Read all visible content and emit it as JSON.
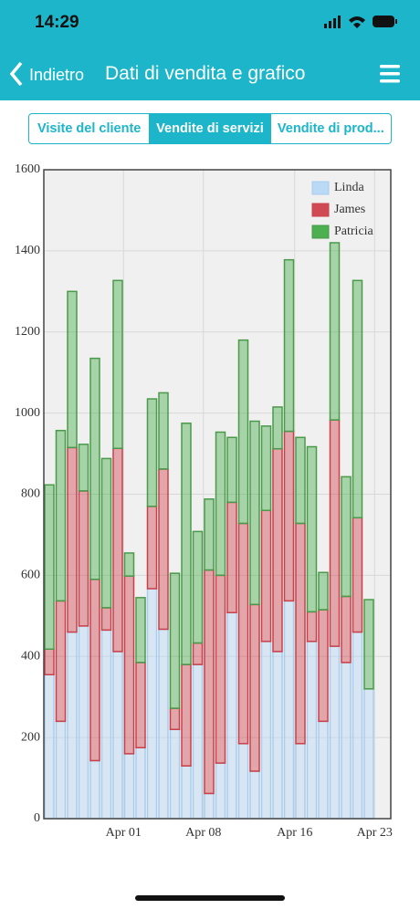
{
  "status": {
    "time": "14:29"
  },
  "nav": {
    "back": "Indietro",
    "title": "Dati di vendita e grafico"
  },
  "tabs": [
    "Visite del cliente",
    "Vendite di servizi",
    "Vendite di prod..."
  ],
  "chart_data": {
    "type": "stacked_bar",
    "x": [
      "Mar 25",
      "Mar 26",
      "Mar 27",
      "Mar 28",
      "Mar 29",
      "Mar 30",
      "Mar 31",
      "Apr 01",
      "Apr 02",
      "Apr 03",
      "Apr 04",
      "Apr 05",
      "Apr 06",
      "Apr 07",
      "Apr 08",
      "Apr 09",
      "Apr 10",
      "Apr 11",
      "Apr 12",
      "Apr 13",
      "Apr 14",
      "Apr 15",
      "Apr 16",
      "Apr 17",
      "Apr 18",
      "Apr 19",
      "Apr 20",
      "Apr 21",
      "Apr 22"
    ],
    "xticks": [
      "Apr 01",
      "Apr 08",
      "Apr 16",
      "Apr 23"
    ],
    "ylim": [
      0,
      1600
    ],
    "yticks": [
      0,
      200,
      400,
      600,
      800,
      1000,
      1200,
      1400,
      1600
    ],
    "grid": true,
    "legend": "top-right",
    "series": [
      {
        "name": "Linda",
        "color": "#b9d9f5",
        "stroke": "#a9cdee",
        "values": [
          355,
          240,
          460,
          475,
          143,
          465,
          412,
          160,
          175,
          567,
          467,
          220,
          130,
          380,
          62,
          137,
          508,
          185,
          117,
          437,
          412,
          537,
          185,
          437,
          240,
          425,
          385,
          460,
          320
        ]
      },
      {
        "name": "James",
        "color": "#d04a55",
        "stroke": "#c9404a",
        "values": [
          63,
          297,
          455,
          333,
          447,
          55,
          501,
          438,
          210,
          203,
          395,
          52,
          250,
          53,
          551,
          463,
          272,
          543,
          411,
          323,
          500,
          418,
          543,
          73,
          275,
          558,
          163,
          282,
          0
        ]
      },
      {
        "name": "Patricia",
        "color": "#4caf50",
        "stroke": "#4a9a4a",
        "values": [
          405,
          420,
          385,
          115,
          545,
          368,
          414,
          57,
          160,
          265,
          188,
          333,
          595,
          275,
          175,
          353,
          160,
          452,
          452,
          208,
          103,
          423,
          212,
          407,
          92,
          437,
          295,
          585,
          220
        ]
      }
    ]
  }
}
